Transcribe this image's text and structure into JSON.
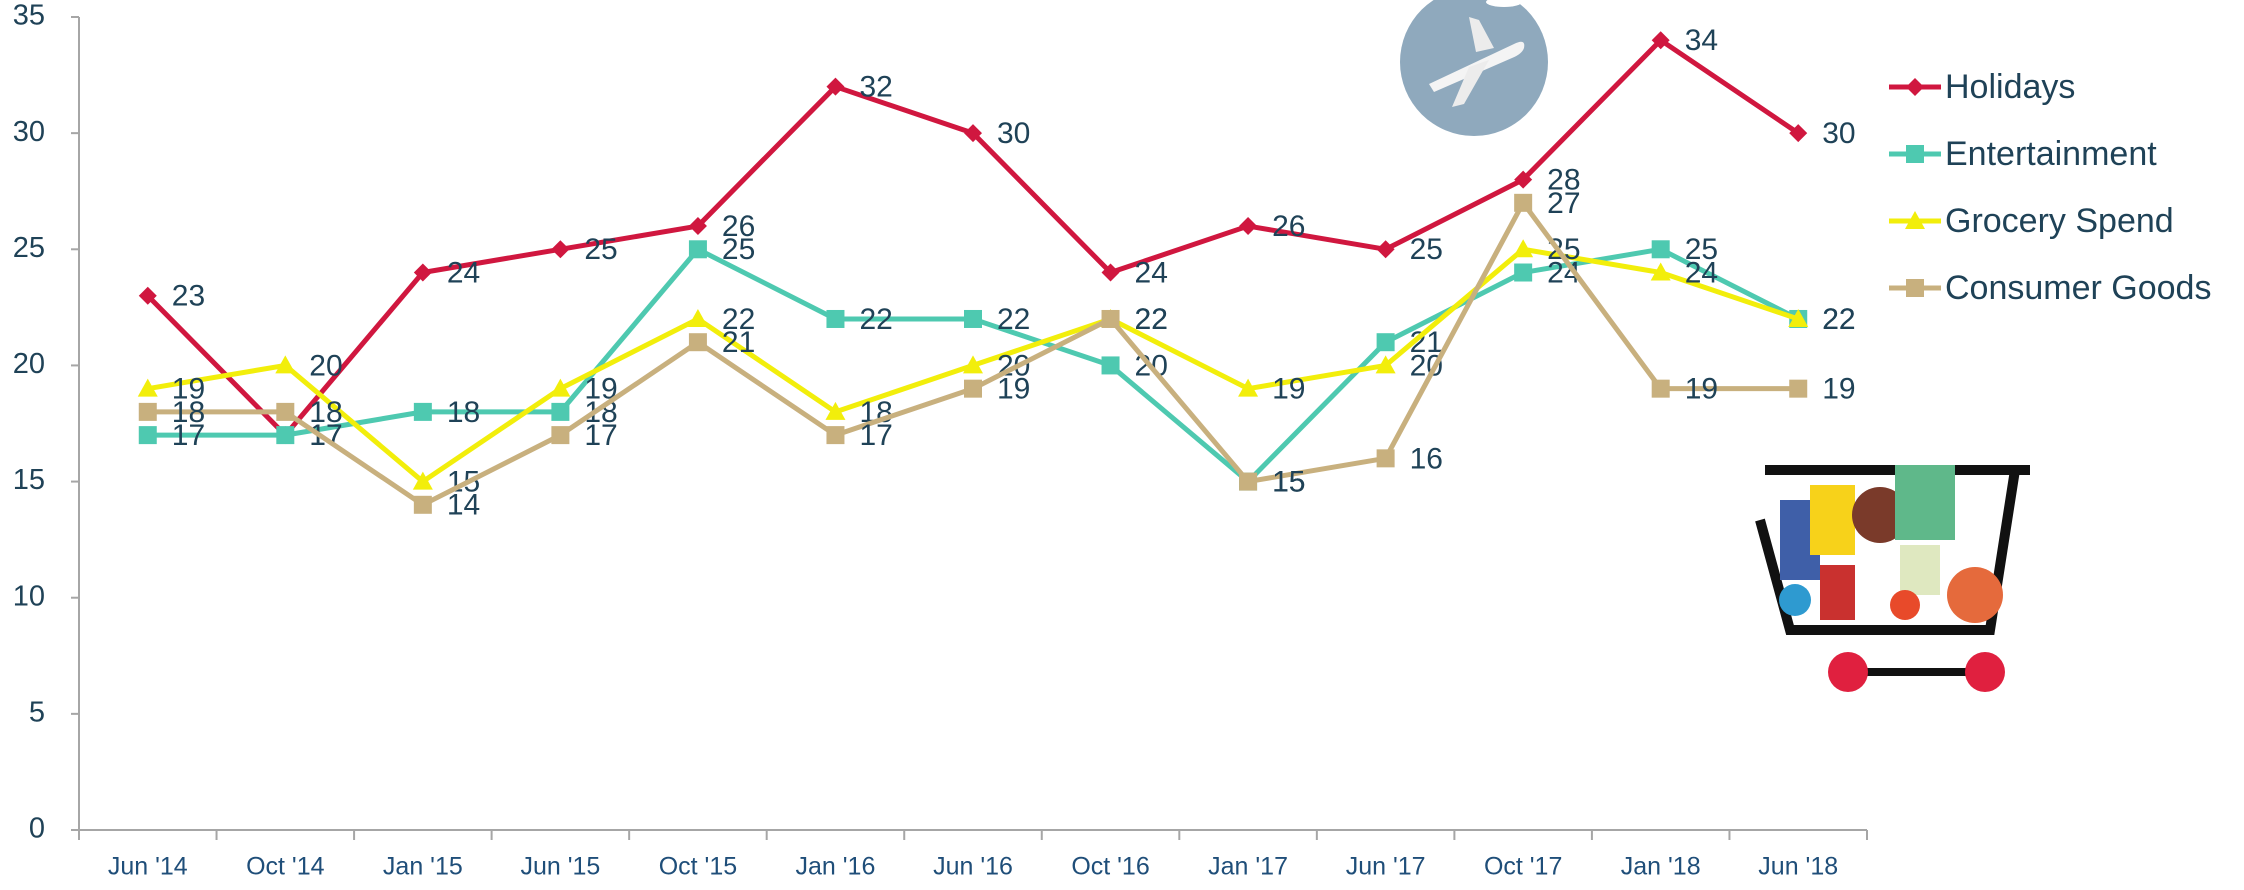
{
  "chart_data": {
    "type": "line",
    "categories": [
      "Jun '14",
      "Oct '14",
      "Jan '15",
      "Jun '15",
      "Oct '15",
      "Jan '16",
      "Jun '16",
      "Oct '16",
      "Jan '17",
      "Jun '17",
      "Oct '17",
      "Jan '18",
      "Jun '18"
    ],
    "series": [
      {
        "name": "Holidays",
        "color": "#d0173f",
        "marker": "diamond",
        "values": [
          23,
          17,
          24,
          25,
          26,
          32,
          30,
          24,
          26,
          25,
          28,
          34,
          30
        ]
      },
      {
        "name": "Entertainment",
        "color": "#4ec9b0",
        "marker": "square",
        "values": [
          17,
          17,
          18,
          18,
          25,
          22,
          22,
          20,
          15,
          21,
          24,
          25,
          22
        ]
      },
      {
        "name": "Grocery Spend",
        "color": "#f2ee0b",
        "marker": "triangle",
        "values": [
          19,
          20,
          15,
          19,
          22,
          18,
          20,
          22,
          19,
          20,
          25,
          24,
          22
        ]
      },
      {
        "name": "Consumer Goods",
        "color": "#c8b07e",
        "marker": "square",
        "values": [
          18,
          18,
          14,
          17,
          21,
          17,
          19,
          22,
          15,
          16,
          27,
          19,
          19
        ]
      }
    ],
    "ylim": [
      0,
      35
    ],
    "yticks": [
      0,
      5,
      10,
      15,
      20,
      25,
      30,
      35
    ],
    "grid": false,
    "legend": "right"
  }
}
